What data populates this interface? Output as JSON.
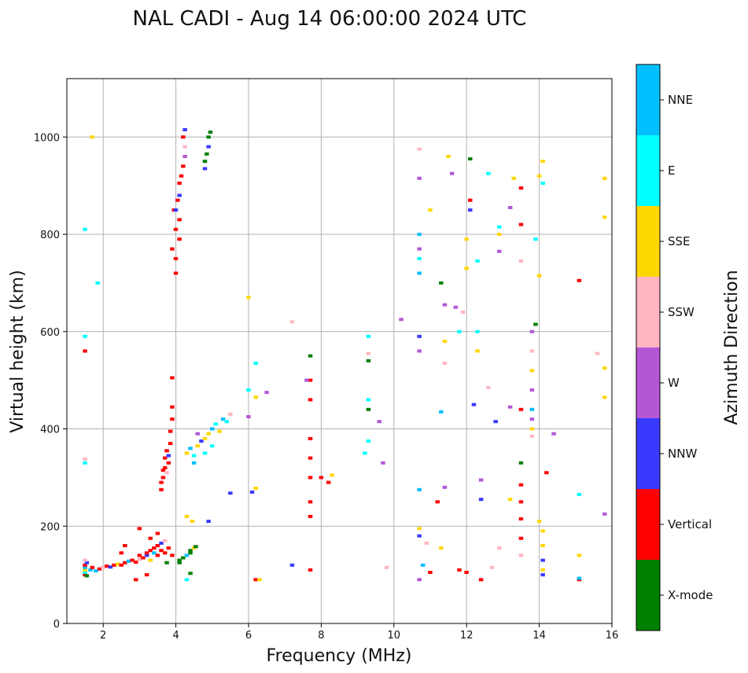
{
  "chart_data": {
    "type": "scatter",
    "title": "NAL CADI - Aug 14 06:00:00 2024 UTC",
    "xlabel": "Frequency (MHz)",
    "ylabel": "Virtual height (km)",
    "xlim": [
      1,
      16
    ],
    "ylim": [
      0,
      1120
    ],
    "xticks": [
      2,
      4,
      6,
      8,
      10,
      12,
      14,
      16
    ],
    "yticks": [
      0,
      200,
      400,
      600,
      800,
      1000
    ],
    "grid": true,
    "colorbar": {
      "title": "Azimuth Direction",
      "categories": [
        {
          "name": "X-mode",
          "color": "#008000"
        },
        {
          "name": "Vertical",
          "color": "#ff0000"
        },
        {
          "name": "NNW",
          "color": "#3a3aff"
        },
        {
          "name": "W",
          "color": "#b357d6"
        },
        {
          "name": "SSW",
          "color": "#ffb6c1"
        },
        {
          "name": "SSE",
          "color": "#ffd700"
        },
        {
          "name": "E",
          "color": "#00ffff"
        },
        {
          "name": "NNE",
          "color": "#00bfff"
        }
      ]
    },
    "points": [
      [
        1.5,
        100,
        "Vertical"
      ],
      [
        1.5,
        105,
        "E"
      ],
      [
        1.5,
        110,
        "SSE"
      ],
      [
        1.5,
        115,
        "NNE"
      ],
      [
        1.5,
        120,
        "Vertical"
      ],
      [
        1.55,
        125,
        "NNW"
      ],
      [
        1.5,
        130,
        "SSW"
      ],
      [
        1.55,
        98,
        "X-mode"
      ],
      [
        1.65,
        110,
        "NNE"
      ],
      [
        1.7,
        115,
        "Vertical"
      ],
      [
        1.8,
        108,
        "NNE"
      ],
      [
        1.9,
        112,
        "Vertical"
      ],
      [
        2.0,
        115,
        "SSW"
      ],
      [
        2.1,
        118,
        "Vertical"
      ],
      [
        2.2,
        116,
        "NNW"
      ],
      [
        2.3,
        120,
        "Vertical"
      ],
      [
        2.4,
        122,
        "SSE"
      ],
      [
        2.5,
        120,
        "Vertical"
      ],
      [
        2.6,
        125,
        "Vertical"
      ],
      [
        2.7,
        128,
        "NNE"
      ],
      [
        2.8,
        130,
        "Vertical"
      ],
      [
        2.9,
        126,
        "Vertical"
      ],
      [
        3.0,
        132,
        "SSW"
      ],
      [
        3.0,
        140,
        "Vertical"
      ],
      [
        3.1,
        135,
        "Vertical"
      ],
      [
        3.2,
        140,
        "NNW"
      ],
      [
        3.2,
        145,
        "Vertical"
      ],
      [
        3.3,
        150,
        "Vertical"
      ],
      [
        3.3,
        130,
        "SSE"
      ],
      [
        3.4,
        155,
        "Vertical"
      ],
      [
        3.4,
        145,
        "NNE"
      ],
      [
        3.5,
        160,
        "Vertical"
      ],
      [
        3.5,
        140,
        "Vertical"
      ],
      [
        3.6,
        165,
        "NNW"
      ],
      [
        3.6,
        150,
        "Vertical"
      ],
      [
        3.7,
        145,
        "Vertical"
      ],
      [
        3.7,
        170,
        "SSW"
      ],
      [
        3.75,
        125,
        "X-mode"
      ],
      [
        3.8,
        155,
        "Vertical"
      ],
      [
        3.3,
        175,
        "Vertical"
      ],
      [
        2.5,
        145,
        "Vertical"
      ],
      [
        2.6,
        160,
        "Vertical"
      ],
      [
        3.0,
        195,
        "Vertical"
      ],
      [
        3.5,
        185,
        "Vertical"
      ],
      [
        3.9,
        140,
        "Vertical"
      ],
      [
        3.2,
        100,
        "Vertical"
      ],
      [
        2.9,
        90,
        "Vertical"
      ],
      [
        4.1,
        130,
        "X-mode"
      ],
      [
        4.2,
        135,
        "X-mode"
      ],
      [
        4.3,
        140,
        "NNE"
      ],
      [
        4.4,
        150,
        "X-mode"
      ],
      [
        4.5,
        155,
        "SSE"
      ],
      [
        4.4,
        145,
        "X-mode"
      ],
      [
        4.3,
        90,
        "E"
      ],
      [
        4.4,
        103,
        "X-mode"
      ],
      [
        4.1,
        125,
        "X-mode"
      ],
      [
        4.55,
        158,
        "X-mode"
      ],
      [
        3.6,
        275,
        "Vertical"
      ],
      [
        3.6,
        290,
        "Vertical"
      ],
      [
        3.65,
        300,
        "Vertical"
      ],
      [
        3.65,
        315,
        "Vertical"
      ],
      [
        3.7,
        320,
        "Vertical"
      ],
      [
        3.7,
        340,
        "Vertical"
      ],
      [
        3.75,
        355,
        "Vertical"
      ],
      [
        3.8,
        345,
        "NNW"
      ],
      [
        3.85,
        370,
        "Vertical"
      ],
      [
        3.85,
        395,
        "Vertical"
      ],
      [
        3.9,
        420,
        "Vertical"
      ],
      [
        3.9,
        445,
        "Vertical"
      ],
      [
        3.9,
        505,
        "Vertical"
      ],
      [
        3.8,
        330,
        "Vertical"
      ],
      [
        3.75,
        310,
        "SSW"
      ],
      [
        4.3,
        350,
        "SSE"
      ],
      [
        4.4,
        360,
        "NNE"
      ],
      [
        4.5,
        345,
        "E"
      ],
      [
        4.6,
        365,
        "SSE"
      ],
      [
        4.7,
        375,
        "NNW"
      ],
      [
        4.8,
        350,
        "E"
      ],
      [
        4.9,
        390,
        "SSE"
      ],
      [
        5.0,
        400,
        "NNE"
      ],
      [
        5.1,
        410,
        "E"
      ],
      [
        5.2,
        395,
        "SSE"
      ],
      [
        5.3,
        420,
        "NNE"
      ],
      [
        5.4,
        415,
        "E"
      ],
      [
        5.5,
        430,
        "SSW"
      ],
      [
        4.6,
        390,
        "W"
      ],
      [
        4.8,
        380,
        "SSE"
      ],
      [
        5.0,
        365,
        "E"
      ],
      [
        4.5,
        330,
        "NNE"
      ],
      [
        4.3,
        220,
        "SSE"
      ],
      [
        4.45,
        210,
        "SSE"
      ],
      [
        4.9,
        210,
        "NNW"
      ],
      [
        5.5,
        268,
        "NNW"
      ],
      [
        6.0,
        425,
        "W"
      ],
      [
        6.0,
        480,
        "E"
      ],
      [
        6.2,
        465,
        "SSE"
      ],
      [
        6.5,
        475,
        "W"
      ],
      [
        6.1,
        270,
        "NNW"
      ],
      [
        6.2,
        278,
        "SSE"
      ],
      [
        6.2,
        90,
        "Vertical"
      ],
      [
        6.3,
        90,
        "SSE"
      ],
      [
        6.0,
        670,
        "SSE"
      ],
      [
        6.2,
        535,
        "E"
      ],
      [
        4.0,
        720,
        "Vertical"
      ],
      [
        4.0,
        750,
        "Vertical"
      ],
      [
        3.9,
        770,
        "Vertical"
      ],
      [
        4.1,
        790,
        "Vertical"
      ],
      [
        4.0,
        810,
        "Vertical"
      ],
      [
        4.1,
        830,
        "Vertical"
      ],
      [
        3.95,
        850,
        "Vertical"
      ],
      [
        4.05,
        870,
        "Vertical"
      ],
      [
        4.1,
        880,
        "NNW"
      ],
      [
        4.1,
        905,
        "Vertical"
      ],
      [
        4.15,
        920,
        "Vertical"
      ],
      [
        4.2,
        940,
        "Vertical"
      ],
      [
        4.25,
        960,
        "W"
      ],
      [
        4.25,
        980,
        "SSW"
      ],
      [
        4.2,
        1000,
        "Vertical"
      ],
      [
        4.25,
        1015,
        "NNW"
      ],
      [
        4.0,
        850,
        "NNW"
      ],
      [
        4.8,
        950,
        "X-mode"
      ],
      [
        4.85,
        965,
        "X-mode"
      ],
      [
        4.9,
        980,
        "NNW"
      ],
      [
        4.9,
        1000,
        "X-mode"
      ],
      [
        4.95,
        1010,
        "X-mode"
      ],
      [
        4.8,
        935,
        "NNW"
      ],
      [
        1.5,
        810,
        "E"
      ],
      [
        1.5,
        590,
        "E"
      ],
      [
        1.5,
        330,
        "E"
      ],
      [
        1.5,
        338,
        "SSW"
      ],
      [
        1.85,
        700,
        "E"
      ],
      [
        1.5,
        560,
        "Vertical"
      ],
      [
        1.7,
        1000,
        "SSE"
      ],
      [
        7.7,
        110,
        "Vertical"
      ],
      [
        7.7,
        220,
        "Vertical"
      ],
      [
        7.7,
        250,
        "Vertical"
      ],
      [
        7.7,
        300,
        "Vertical"
      ],
      [
        7.7,
        340,
        "Vertical"
      ],
      [
        7.7,
        380,
        "Vertical"
      ],
      [
        7.7,
        460,
        "Vertical"
      ],
      [
        7.7,
        500,
        "Vertical"
      ],
      [
        7.7,
        550,
        "X-mode"
      ],
      [
        7.6,
        500,
        "W"
      ],
      [
        7.2,
        620,
        "SSW"
      ],
      [
        7.2,
        120,
        "NNW"
      ],
      [
        8.0,
        300,
        "Vertical"
      ],
      [
        8.2,
        290,
        "Vertical"
      ],
      [
        8.3,
        305,
        "SSE"
      ],
      [
        9.2,
        350,
        "E"
      ],
      [
        9.3,
        375,
        "E"
      ],
      [
        9.3,
        440,
        "X-mode"
      ],
      [
        9.3,
        460,
        "E"
      ],
      [
        9.3,
        540,
        "X-mode"
      ],
      [
        9.3,
        555,
        "SSW"
      ],
      [
        9.3,
        590,
        "E"
      ],
      [
        9.6,
        415,
        "W"
      ],
      [
        9.7,
        330,
        "W"
      ],
      [
        9.8,
        115,
        "SSW"
      ],
      [
        10.2,
        625,
        "W"
      ],
      [
        10.7,
        800,
        "NNE"
      ],
      [
        10.7,
        770,
        "W"
      ],
      [
        10.7,
        750,
        "E"
      ],
      [
        10.7,
        720,
        "NNE"
      ],
      [
        10.7,
        590,
        "NNW"
      ],
      [
        10.7,
        560,
        "W"
      ],
      [
        10.7,
        275,
        "NNE"
      ],
      [
        10.7,
        195,
        "SSE"
      ],
      [
        10.7,
        180,
        "NNW"
      ],
      [
        10.8,
        120,
        "NNE"
      ],
      [
        10.7,
        90,
        "W"
      ],
      [
        10.7,
        915,
        "W"
      ],
      [
        10.7,
        975,
        "SSW"
      ],
      [
        11.0,
        850,
        "SSE"
      ],
      [
        11.3,
        700,
        "X-mode"
      ],
      [
        11.4,
        655,
        "W"
      ],
      [
        11.5,
        960,
        "SSE"
      ],
      [
        11.6,
        925,
        "W"
      ],
      [
        11.7,
        650,
        "W"
      ],
      [
        11.8,
        600,
        "E"
      ],
      [
        11.9,
        640,
        "SSW"
      ],
      [
        12.0,
        730,
        "SSE"
      ],
      [
        12.0,
        790,
        "SSE"
      ],
      [
        12.1,
        850,
        "NNW"
      ],
      [
        12.1,
        870,
        "Vertical"
      ],
      [
        12.1,
        955,
        "X-mode"
      ],
      [
        12.3,
        745,
        "E"
      ],
      [
        12.3,
        600,
        "E"
      ],
      [
        12.3,
        560,
        "SSE"
      ],
      [
        12.6,
        485,
        "SSW"
      ],
      [
        12.8,
        415,
        "NNW"
      ],
      [
        12.9,
        815,
        "E"
      ],
      [
        12.9,
        800,
        "SSE"
      ],
      [
        12.9,
        765,
        "W"
      ],
      [
        13.2,
        855,
        "W"
      ],
      [
        13.3,
        915,
        "SSE"
      ],
      [
        13.5,
        895,
        "Vertical"
      ],
      [
        13.5,
        820,
        "Vertical"
      ],
      [
        13.5,
        745,
        "SSW"
      ],
      [
        13.5,
        440,
        "Vertical"
      ],
      [
        13.5,
        330,
        "X-mode"
      ],
      [
        13.5,
        285,
        "Vertical"
      ],
      [
        13.5,
        250,
        "Vertical"
      ],
      [
        13.5,
        215,
        "Vertical"
      ],
      [
        13.5,
        175,
        "Vertical"
      ],
      [
        13.5,
        140,
        "SSW"
      ],
      [
        13.8,
        600,
        "W"
      ],
      [
        13.8,
        560,
        "SSW"
      ],
      [
        13.8,
        520,
        "SSE"
      ],
      [
        13.8,
        480,
        "W"
      ],
      [
        13.8,
        440,
        "NNE"
      ],
      [
        13.8,
        420,
        "W"
      ],
      [
        13.8,
        400,
        "SSE"
      ],
      [
        13.8,
        385,
        "SSW"
      ],
      [
        13.9,
        615,
        "X-mode"
      ],
      [
        13.9,
        790,
        "E"
      ],
      [
        14.0,
        920,
        "SSE"
      ],
      [
        14.1,
        950,
        "SSE"
      ],
      [
        14.1,
        905,
        "E"
      ],
      [
        14.2,
        310,
        "Vertical"
      ],
      [
        14.1,
        190,
        "SSE"
      ],
      [
        14.1,
        160,
        "SSE"
      ],
      [
        14.1,
        130,
        "NNW"
      ],
      [
        14.1,
        110,
        "SSE"
      ],
      [
        14.1,
        100,
        "NNW"
      ],
      [
        14.4,
        390,
        "W"
      ],
      [
        14.0,
        715,
        "SSE"
      ],
      [
        14.0,
        210,
        "SSE"
      ],
      [
        15.1,
        705,
        "Vertical"
      ],
      [
        15.1,
        265,
        "E"
      ],
      [
        15.1,
        140,
        "SSE"
      ],
      [
        15.1,
        90,
        "Vertical"
      ],
      [
        15.1,
        93,
        "NNE"
      ],
      [
        15.6,
        555,
        "SSW"
      ],
      [
        15.8,
        525,
        "SSE"
      ],
      [
        15.8,
        465,
        "SSE"
      ],
      [
        15.8,
        835,
        "SSE"
      ],
      [
        15.8,
        915,
        "SSE"
      ],
      [
        15.8,
        225,
        "W"
      ],
      [
        12.4,
        255,
        "NNW"
      ],
      [
        12.4,
        295,
        "W"
      ],
      [
        12.4,
        90,
        "Vertical"
      ],
      [
        12.0,
        105,
        "Vertical"
      ],
      [
        11.8,
        110,
        "Vertical"
      ],
      [
        11.2,
        250,
        "Vertical"
      ],
      [
        11.3,
        155,
        "SSE"
      ],
      [
        11.4,
        280,
        "W"
      ],
      [
        11.3,
        435,
        "NNE"
      ],
      [
        11.4,
        580,
        "SSE"
      ],
      [
        11.4,
        535,
        "SSW"
      ],
      [
        12.2,
        450,
        "NNW"
      ],
      [
        12.7,
        115,
        "SSW"
      ],
      [
        12.9,
        155,
        "SSW"
      ],
      [
        13.2,
        255,
        "SSE"
      ],
      [
        13.2,
        445,
        "W"
      ],
      [
        10.9,
        165,
        "SSW"
      ],
      [
        11.0,
        105,
        "Vertical"
      ],
      [
        12.6,
        925,
        "E"
      ]
    ]
  }
}
